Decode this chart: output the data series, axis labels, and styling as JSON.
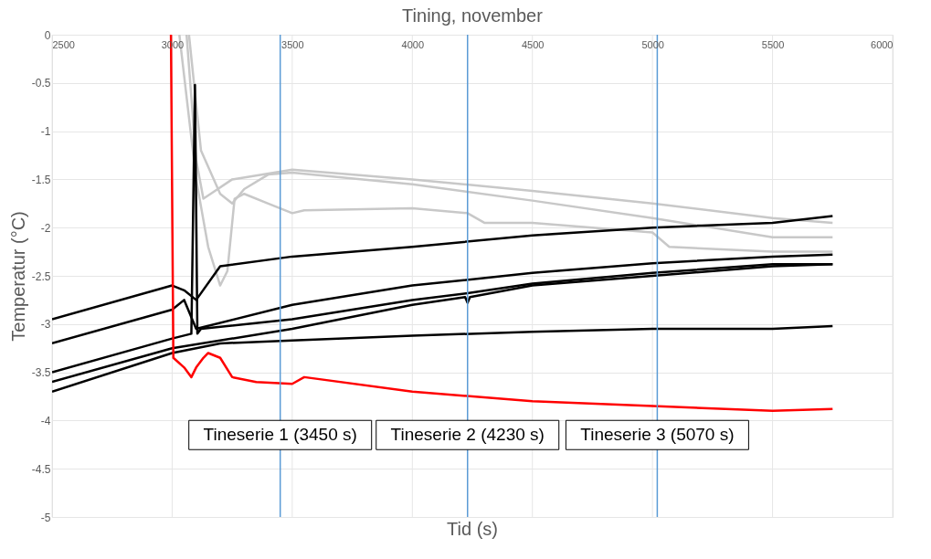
{
  "chart_data": {
    "type": "line",
    "title": "Tining, november",
    "xlabel": "Tid (s)",
    "ylabel": "Temperatur (°C)",
    "xlim": [
      2500,
      6000
    ],
    "xticks": [
      2500,
      3000,
      3500,
      4000,
      4500,
      5000,
      5500,
      6000
    ],
    "ylim": [
      -5,
      0
    ],
    "yticks": [
      0,
      -0.5,
      -1,
      -1.5,
      -2,
      -2.5,
      -3,
      -3.5,
      -4,
      -4.5,
      -5
    ],
    "grid": true,
    "marker": "none",
    "line_style": "solid",
    "series": [
      {
        "color": "#c8c8c8",
        "x": [
          3060,
          3100,
          3130,
          3160,
          3250,
          3500,
          4000,
          4500,
          5000,
          5500,
          5750
        ],
        "values": [
          0,
          -1.3,
          -1.7,
          -1.65,
          -1.5,
          -1.4,
          -1.5,
          -1.62,
          -1.75,
          -1.9,
          -1.95
        ]
      },
      {
        "color": "#c8c8c8",
        "x": [
          3070,
          3120,
          3200,
          3250,
          3300,
          3400,
          3500,
          4000,
          4500,
          5000,
          5500,
          5750
        ],
        "values": [
          0,
          -1.2,
          -1.65,
          -1.75,
          -1.6,
          -1.45,
          -1.43,
          -1.55,
          -1.72,
          -1.9,
          -2.1,
          -2.1
        ]
      },
      {
        "color": "#c8c8c8",
        "x": [
          3030,
          3100,
          3150,
          3200,
          3230,
          3260,
          3300,
          3400,
          3500,
          3550,
          4000,
          4230,
          4300,
          4500,
          5000,
          5070,
          5500,
          5750
        ],
        "values": [
          0,
          -1.5,
          -2.2,
          -2.6,
          -2.45,
          -1.7,
          -1.65,
          -1.75,
          -1.85,
          -1.82,
          -1.8,
          -1.85,
          -1.95,
          -1.95,
          -2.05,
          -2.2,
          -2.25,
          -2.25
        ]
      },
      {
        "color": "#000000",
        "x": [
          2500,
          3000,
          3050,
          3100,
          3200,
          3500,
          4000,
          4500,
          5000,
          5500,
          5750
        ],
        "values": [
          -2.95,
          -2.6,
          -2.65,
          -2.75,
          -2.4,
          -2.3,
          -2.2,
          -2.08,
          -2.0,
          -1.95,
          -1.88
        ]
      },
      {
        "color": "#000000",
        "x": [
          2500,
          3000,
          3050,
          3100,
          3500,
          4000,
          4500,
          5000,
          5500,
          5750
        ],
        "values": [
          -3.2,
          -2.85,
          -2.75,
          -3.05,
          -2.8,
          -2.6,
          -2.47,
          -2.37,
          -2.3,
          -2.28
        ]
      },
      {
        "color": "#000000",
        "x": [
          2500,
          3000,
          3080,
          3095,
          3105,
          3120,
          3500,
          4000,
          4230,
          4500,
          5000,
          5500,
          5750
        ],
        "values": [
          -3.5,
          -3.15,
          -3.1,
          -0.52,
          -3.1,
          -3.05,
          -2.95,
          -2.75,
          -2.68,
          -2.58,
          -2.47,
          -2.38,
          -2.38
        ]
      },
      {
        "color": "#000000",
        "x": [
          2500,
          3000,
          3500,
          4000,
          4220,
          4230,
          4240,
          4500,
          5000,
          5500,
          5750
        ],
        "values": [
          -3.6,
          -3.25,
          -3.05,
          -2.8,
          -2.72,
          -2.78,
          -2.72,
          -2.6,
          -2.5,
          -2.4,
          -2.38
        ]
      },
      {
        "color": "#000000",
        "x": [
          2500,
          3000,
          3200,
          3500,
          4000,
          4500,
          5000,
          5500,
          5750
        ],
        "values": [
          -3.7,
          -3.3,
          -3.2,
          -3.17,
          -3.12,
          -3.08,
          -3.05,
          -3.05,
          -3.02
        ]
      },
      {
        "color": "#ff0000",
        "x": [
          2995,
          3005,
          3050,
          3080,
          3100,
          3130,
          3150,
          3200,
          3250,
          3350,
          3500,
          3550,
          4000,
          4500,
          5000,
          5500,
          5750
        ],
        "values": [
          0,
          -3.35,
          -3.45,
          -3.55,
          -3.45,
          -3.35,
          -3.3,
          -3.35,
          -3.55,
          -3.6,
          -3.62,
          -3.55,
          -3.7,
          -3.8,
          -3.85,
          -3.9,
          -3.88
        ]
      }
    ],
    "ref_lines": [
      {
        "axis": "x",
        "value": 3450,
        "label": "Tineserie 1 (3450 s)",
        "color": "#5b9bd5"
      },
      {
        "axis": "x",
        "value": 4230,
        "label": "Tineserie 2 (4230 s)",
        "color": "#5b9bd5"
      },
      {
        "axis": "x",
        "value": 5020,
        "label": "Tineserie 3 (5070 s)",
        "color": "#5b9bd5"
      }
    ]
  }
}
